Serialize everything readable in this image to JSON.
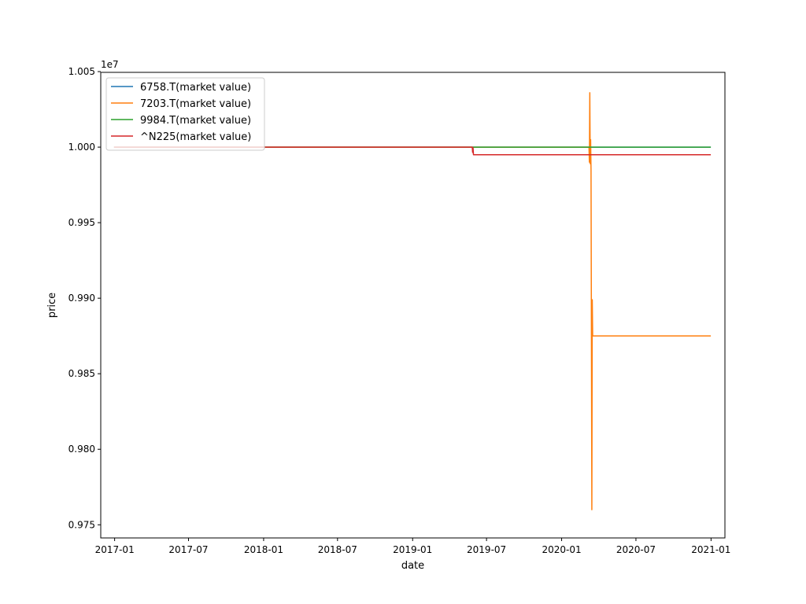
{
  "chart_data": {
    "type": "line",
    "xlabel": "date",
    "ylabel": "price",
    "y_offset_label": "1e7",
    "x_tick_labels": [
      "2017-01",
      "2017-07",
      "2018-01",
      "2018-07",
      "2019-01",
      "2019-07",
      "2020-01",
      "2020-07",
      "2021-01"
    ],
    "x_tick_dates": [
      "2017-01-01",
      "2017-07-01",
      "2018-01-01",
      "2018-07-01",
      "2019-01-01",
      "2019-07-01",
      "2020-01-01",
      "2020-07-01",
      "2021-01-01"
    ],
    "xlim": [
      "2016-11-28",
      "2021-02-04"
    ],
    "y_tick_labels": [
      "0.975",
      "0.980",
      "0.985",
      "0.990",
      "0.995",
      "1.000",
      "1.005"
    ],
    "y_tick_values": [
      0.975,
      0.98,
      0.985,
      0.99,
      0.995,
      1.0,
      1.005
    ],
    "ylim": [
      0.97413,
      1.00495
    ],
    "legend_position": "upper left",
    "series": [
      {
        "name": "6758.T(market value)",
        "color": "#1f77b4",
        "points": [
          [
            "2017-01-01",
            1.0
          ],
          [
            "2020-12-30",
            1.0
          ]
        ]
      },
      {
        "name": "7203.T(market value)",
        "color": "#ff7f0e",
        "points": [
          [
            "2017-01-01",
            1.0
          ],
          [
            "2020-03-08",
            1.0
          ],
          [
            "2020-03-09",
            0.999
          ],
          [
            "2020-03-10",
            1.0036
          ],
          [
            "2020-03-11",
            0.9989
          ],
          [
            "2020-03-12",
            1.0005
          ],
          [
            "2020-03-13",
            0.9985
          ],
          [
            "2020-03-15",
            0.976
          ],
          [
            "2020-03-16",
            0.9899
          ],
          [
            "2020-03-17",
            0.9875
          ],
          [
            "2020-12-30",
            0.9875
          ]
        ]
      },
      {
        "name": "9984.T(market value)",
        "color": "#2ca02c",
        "points": [
          [
            "2017-01-01",
            1.0
          ],
          [
            "2020-12-30",
            1.0
          ]
        ]
      },
      {
        "name": "^N225(market value)",
        "color": "#d62728",
        "points": [
          [
            "2017-01-01",
            1.0
          ],
          [
            "2019-05-27",
            1.0
          ],
          [
            "2019-05-28",
            0.99965
          ],
          [
            "2019-05-29",
            0.99995
          ],
          [
            "2019-05-30",
            0.9995
          ],
          [
            "2019-05-31",
            0.9995
          ],
          [
            "2019-06-01",
            0.9995
          ],
          [
            "2020-12-30",
            0.9995
          ]
        ]
      }
    ]
  }
}
